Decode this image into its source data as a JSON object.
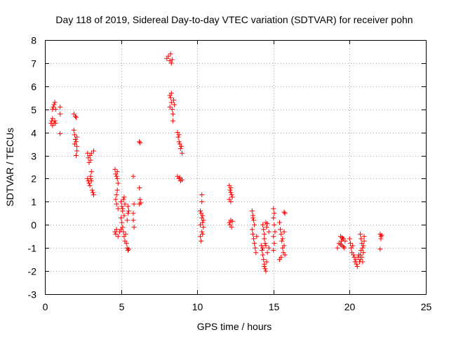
{
  "chart_data": {
    "type": "scatter",
    "title": "Day 118 of 2019, Sidereal Day-to-day VTEC variation (SDTVAR) for receiver pohn",
    "xlabel": "GPS time / hours",
    "ylabel": "SDTVAR / TECUs",
    "xlim": [
      0,
      25
    ],
    "ylim": [
      -3,
      8
    ],
    "xticks": [
      0,
      5,
      10,
      15,
      20,
      25
    ],
    "yticks": [
      -3,
      -2,
      -1,
      0,
      1,
      2,
      3,
      4,
      5,
      6,
      7,
      8
    ],
    "xtick_labels": [
      "0",
      "5",
      "10",
      "15",
      "20",
      "25"
    ],
    "ytick_labels": [
      "-3",
      "-2",
      "-1",
      "0",
      "1",
      "2",
      "3",
      "4",
      "5",
      "6",
      "7",
      "8"
    ],
    "grid": true,
    "marker": "+",
    "color": "#ff0000",
    "points": [
      [
        0.4,
        4.4
      ],
      [
        0.45,
        4.5
      ],
      [
        0.5,
        4.3
      ],
      [
        0.5,
        5.0
      ],
      [
        0.55,
        5.1
      ],
      [
        0.6,
        4.4
      ],
      [
        0.6,
        5.2
      ],
      [
        0.65,
        4.5
      ],
      [
        0.7,
        5.0
      ],
      [
        0.7,
        4.4
      ],
      [
        0.65,
        5.3
      ],
      [
        0.5,
        4.6
      ],
      [
        1.0,
        5.1
      ],
      [
        1.0,
        4.8
      ],
      [
        1.0,
        3.95
      ],
      [
        1.9,
        4.8
      ],
      [
        2.0,
        4.7
      ],
      [
        2.05,
        4.65
      ],
      [
        1.9,
        4.1
      ],
      [
        1.95,
        3.9
      ],
      [
        2.0,
        3.7
      ],
      [
        2.05,
        3.6
      ],
      [
        2.1,
        3.4
      ],
      [
        2.1,
        3.2
      ],
      [
        2.05,
        3.0
      ],
      [
        1.95,
        3.5
      ],
      [
        2.1,
        3.8
      ],
      [
        2.8,
        3.1
      ],
      [
        2.85,
        2.9
      ],
      [
        2.9,
        2.7
      ],
      [
        2.95,
        3.0
      ],
      [
        3.0,
        2.8
      ],
      [
        3.05,
        3.1
      ],
      [
        3.2,
        3.2
      ],
      [
        2.8,
        2.0
      ],
      [
        2.85,
        1.9
      ],
      [
        2.9,
        1.8
      ],
      [
        2.95,
        1.7
      ],
      [
        3.0,
        2.1
      ],
      [
        3.05,
        1.9
      ],
      [
        3.1,
        1.5
      ],
      [
        3.15,
        1.4
      ],
      [
        3.2,
        1.3
      ],
      [
        3.05,
        2.3
      ],
      [
        3.0,
        2.0
      ],
      [
        4.6,
        2.4
      ],
      [
        4.65,
        2.2
      ],
      [
        4.7,
        2.1
      ],
      [
        4.75,
        2.0
      ],
      [
        4.8,
        1.8
      ],
      [
        4.75,
        1.5
      ],
      [
        4.7,
        1.3
      ],
      [
        4.65,
        1.1
      ],
      [
        4.7,
        0.9
      ],
      [
        4.8,
        0.7
      ],
      [
        4.6,
        -0.3
      ],
      [
        4.65,
        -0.4
      ],
      [
        4.7,
        -0.2
      ],
      [
        4.8,
        -0.5
      ],
      [
        4.9,
        -0.3
      ],
      [
        4.75,
        2.3
      ],
      [
        5.0,
        1.0
      ],
      [
        5.05,
        0.8
      ],
      [
        5.1,
        0.6
      ],
      [
        5.15,
        1.1
      ],
      [
        5.2,
        1.2
      ],
      [
        5.25,
        0.9
      ],
      [
        5.0,
        0.3
      ],
      [
        5.05,
        0.1
      ],
      [
        5.1,
        -0.1
      ],
      [
        5.15,
        -0.3
      ],
      [
        5.2,
        -0.5
      ],
      [
        5.25,
        -0.7
      ],
      [
        5.3,
        -0.4
      ],
      [
        5.35,
        -0.8
      ],
      [
        5.0,
        -0.2
      ],
      [
        5.1,
        0.7
      ],
      [
        5.2,
        0.4
      ],
      [
        5.4,
        -1.0
      ],
      [
        5.45,
        -1.1
      ],
      [
        5.5,
        -1.05
      ],
      [
        5.45,
        0.8
      ],
      [
        5.5,
        0.6
      ],
      [
        5.4,
        0.2
      ],
      [
        5.45,
        0.5
      ],
      [
        5.8,
        2.1
      ],
      [
        5.85,
        0.9
      ],
      [
        5.8,
        0.2
      ],
      [
        5.85,
        -0.1
      ],
      [
        5.8,
        0.5
      ],
      [
        6.2,
        3.6
      ],
      [
        6.25,
        3.55
      ],
      [
        6.2,
        1.6
      ],
      [
        6.25,
        1.1
      ],
      [
        6.2,
        0.9
      ],
      [
        6.3,
        0.95
      ],
      [
        8.0,
        7.2
      ],
      [
        8.1,
        7.3
      ],
      [
        8.2,
        7.1
      ],
      [
        8.25,
        7.4
      ],
      [
        8.3,
        7.0
      ],
      [
        8.35,
        7.15
      ],
      [
        8.2,
        5.6
      ],
      [
        8.25,
        5.5
      ],
      [
        8.3,
        5.3
      ],
      [
        8.35,
        5.0
      ],
      [
        8.4,
        4.8
      ],
      [
        8.45,
        5.4
      ],
      [
        8.5,
        5.2
      ],
      [
        8.4,
        4.5
      ],
      [
        8.3,
        5.7
      ],
      [
        8.2,
        5.1
      ],
      [
        8.7,
        4.0
      ],
      [
        8.75,
        3.8
      ],
      [
        8.8,
        3.6
      ],
      [
        8.85,
        3.5
      ],
      [
        8.9,
        3.3
      ],
      [
        8.95,
        3.4
      ],
      [
        9.0,
        3.1
      ],
      [
        8.8,
        3.9
      ],
      [
        8.7,
        2.1
      ],
      [
        8.8,
        2.0
      ],
      [
        8.9,
        1.9
      ],
      [
        9.0,
        1.95
      ],
      [
        8.85,
        2.05
      ],
      [
        10.2,
        0.6
      ],
      [
        10.25,
        0.5
      ],
      [
        10.3,
        0.3
      ],
      [
        10.35,
        0.1
      ],
      [
        10.4,
        -0.1
      ],
      [
        10.3,
        -0.3
      ],
      [
        10.2,
        -0.5
      ],
      [
        10.25,
        -0.7
      ],
      [
        10.35,
        0.4
      ],
      [
        10.4,
        0.2
      ],
      [
        10.3,
        1.0
      ],
      [
        10.3,
        1.3
      ],
      [
        10.2,
        0.0
      ],
      [
        10.35,
        -0.4
      ],
      [
        12.1,
        1.7
      ],
      [
        12.15,
        1.5
      ],
      [
        12.2,
        1.4
      ],
      [
        12.25,
        1.3
      ],
      [
        12.3,
        1.2
      ],
      [
        12.2,
        1.0
      ],
      [
        12.1,
        1.1
      ],
      [
        12.1,
        0.1
      ],
      [
        12.15,
        0.0
      ],
      [
        12.2,
        0.2
      ],
      [
        12.25,
        -0.1
      ],
      [
        12.3,
        0.15
      ],
      [
        12.2,
        1.6
      ],
      [
        13.6,
        0.6
      ],
      [
        13.65,
        0.4
      ],
      [
        13.7,
        0.2
      ],
      [
        13.75,
        0.0
      ],
      [
        13.6,
        -0.2
      ],
      [
        13.65,
        -0.4
      ],
      [
        13.7,
        -0.6
      ],
      [
        13.75,
        -0.8
      ],
      [
        13.8,
        -1.0
      ],
      [
        13.85,
        -1.2
      ],
      [
        13.9,
        -0.5
      ],
      [
        13.65,
        0.3
      ],
      [
        14.2,
        -0.9
      ],
      [
        14.25,
        -1.1
      ],
      [
        14.3,
        -1.3
      ],
      [
        14.35,
        -1.5
      ],
      [
        14.4,
        -1.7
      ],
      [
        14.45,
        -1.9
      ],
      [
        14.5,
        -2.0
      ],
      [
        14.55,
        -1.6
      ],
      [
        14.3,
        -1.0
      ],
      [
        14.45,
        -0.8
      ],
      [
        14.6,
        -1.2
      ],
      [
        14.7,
        -1.0
      ],
      [
        14.5,
        -0.9
      ],
      [
        14.4,
        -1.8
      ],
      [
        14.3,
        0.0
      ],
      [
        14.35,
        -0.2
      ],
      [
        14.4,
        -0.4
      ],
      [
        14.5,
        0.1
      ],
      [
        14.55,
        -0.1
      ],
      [
        14.6,
        0.05
      ],
      [
        14.7,
        -0.3
      ],
      [
        14.4,
        -0.6
      ],
      [
        15.0,
        0.7
      ],
      [
        15.05,
        0.5
      ],
      [
        15.0,
        0.3
      ],
      [
        15.05,
        0.0
      ],
      [
        15.1,
        -0.3
      ],
      [
        15.0,
        -0.5
      ],
      [
        15.05,
        -0.8
      ],
      [
        15.0,
        -1.1
      ],
      [
        15.4,
        0.1
      ],
      [
        15.45,
        -0.2
      ],
      [
        15.5,
        -0.4
      ],
      [
        15.55,
        -0.7
      ],
      [
        15.6,
        -1.0
      ],
      [
        15.65,
        -1.2
      ],
      [
        15.5,
        -1.4
      ],
      [
        15.4,
        -1.5
      ],
      [
        15.7,
        -0.9
      ],
      [
        15.75,
        -1.3
      ],
      [
        15.6,
        -0.6
      ],
      [
        15.7,
        -0.3
      ],
      [
        15.7,
        0.55
      ],
      [
        15.75,
        0.5
      ],
      [
        19.2,
        -1.0
      ],
      [
        19.3,
        -0.8
      ],
      [
        19.4,
        -0.5
      ],
      [
        19.45,
        -0.7
      ],
      [
        19.5,
        -0.9
      ],
      [
        19.55,
        -0.6
      ],
      [
        19.6,
        -0.95
      ],
      [
        19.65,
        -1.0
      ],
      [
        19.7,
        -0.7
      ],
      [
        19.5,
        -0.55
      ],
      [
        19.4,
        -0.85
      ],
      [
        19.6,
        -0.6
      ],
      [
        20.0,
        -0.6
      ],
      [
        20.05,
        -0.8
      ],
      [
        20.1,
        -1.0
      ],
      [
        20.15,
        -1.2
      ],
      [
        20.2,
        -0.9
      ],
      [
        20.25,
        -1.3
      ],
      [
        20.3,
        -1.4
      ],
      [
        20.35,
        -1.6
      ],
      [
        20.4,
        -1.5
      ],
      [
        20.45,
        -1.7
      ],
      [
        20.5,
        -1.8
      ],
      [
        20.55,
        -1.4
      ],
      [
        20.6,
        -1.3
      ],
      [
        20.65,
        -1.6
      ],
      [
        20.7,
        -1.5
      ],
      [
        20.7,
        -0.4
      ],
      [
        20.75,
        -0.6
      ],
      [
        20.8,
        -0.8
      ],
      [
        20.85,
        -1.0
      ],
      [
        20.9,
        -1.2
      ],
      [
        20.95,
        -0.5
      ],
      [
        20.8,
        -1.4
      ],
      [
        20.9,
        -0.9
      ],
      [
        20.85,
        -1.6
      ],
      [
        20.75,
        -1.1
      ],
      [
        20.95,
        -0.7
      ],
      [
        20.7,
        -1.3
      ],
      [
        22.0,
        -0.4
      ],
      [
        22.05,
        -0.5
      ],
      [
        22.1,
        -0.45
      ],
      [
        22.05,
        -0.6
      ],
      [
        22.0,
        -1.05
      ]
    ]
  }
}
